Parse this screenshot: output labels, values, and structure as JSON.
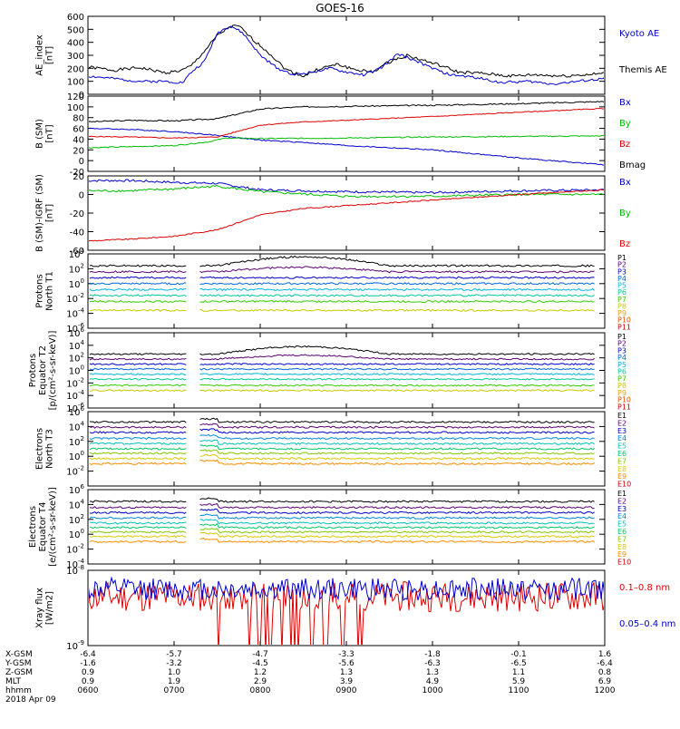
{
  "chart_data": {
    "type": "line",
    "title": "GOES-16",
    "time_range_hours": [
      6,
      12
    ],
    "panels": [
      {
        "id": "ae",
        "ylabel": [
          "AE_index",
          "[nT]"
        ],
        "scale": "linear",
        "ylim": [
          0,
          600
        ],
        "yticks": [
          0,
          100,
          200,
          300,
          400,
          500,
          600
        ],
        "ytick_labels": [
          "0",
          "100",
          "200",
          "300",
          "400",
          "500",
          "600"
        ],
        "legend": [
          {
            "label": "Kyoto AE",
            "color": "#0000cc"
          },
          {
            "label": "Themis AE",
            "color": "#000000"
          }
        ],
        "series": [
          {
            "name": "Themis AE",
            "color": "#000000",
            "seed": 1,
            "noise": 12,
            "points": [
              [
                6.0,
                210
              ],
              [
                6.3,
                185
              ],
              [
                6.6,
                205
              ],
              [
                6.9,
                165
              ],
              [
                7.1,
                185
              ],
              [
                7.2,
                220
              ],
              [
                7.35,
                330
              ],
              [
                7.5,
                450
              ],
              [
                7.65,
                520
              ],
              [
                7.75,
                525
              ],
              [
                7.9,
                430
              ],
              [
                8.1,
                320
              ],
              [
                8.3,
                190
              ],
              [
                8.5,
                140
              ],
              [
                8.7,
                200
              ],
              [
                8.9,
                230
              ],
              [
                9.1,
                190
              ],
              [
                9.3,
                170
              ],
              [
                9.5,
                250
              ],
              [
                9.7,
                300
              ],
              [
                9.9,
                260
              ],
              [
                10.1,
                220
              ],
              [
                10.3,
                170
              ],
              [
                10.6,
                160
              ],
              [
                10.9,
                140
              ],
              [
                11.2,
                150
              ],
              [
                11.5,
                140
              ],
              [
                12.0,
                160
              ]
            ]
          },
          {
            "name": "Kyoto AE",
            "color": "#0000cc",
            "seed": 2,
            "noise": 10,
            "points": [
              [
                6.0,
                140
              ],
              [
                6.3,
                120
              ],
              [
                6.6,
                100
              ],
              [
                6.9,
                100
              ],
              [
                7.1,
                90
              ],
              [
                7.2,
                170
              ],
              [
                7.35,
                250
              ],
              [
                7.5,
                470
              ],
              [
                7.65,
                530
              ],
              [
                7.8,
                470
              ],
              [
                8.0,
                300
              ],
              [
                8.2,
                200
              ],
              [
                8.4,
                150
              ],
              [
                8.6,
                170
              ],
              [
                8.8,
                200
              ],
              [
                9.0,
                170
              ],
              [
                9.2,
                150
              ],
              [
                9.4,
                200
              ],
              [
                9.6,
                310
              ],
              [
                9.8,
                260
              ],
              [
                10.0,
                200
              ],
              [
                10.2,
                150
              ],
              [
                10.5,
                130
              ],
              [
                10.8,
                90
              ],
              [
                11.1,
                100
              ],
              [
                11.4,
                80
              ],
              [
                12.0,
                120
              ]
            ]
          }
        ]
      },
      {
        "id": "bsm",
        "ylabel": [
          "B (SM)",
          "[nT]"
        ],
        "scale": "linear",
        "ylim": [
          -20,
          120
        ],
        "yticks": [
          -20,
          0,
          20,
          40,
          60,
          80,
          100,
          120
        ],
        "ytick_labels": [
          "-20",
          "0",
          "20",
          "40",
          "60",
          "80",
          "100",
          "120"
        ],
        "legend": [
          {
            "label": "Bx",
            "color": "#0000cc"
          },
          {
            "label": "By",
            "color": "#00bb00"
          },
          {
            "label": "Bz",
            "color": "#dd0000"
          },
          {
            "label": "Bmag",
            "color": "#000000"
          }
        ],
        "series": [
          {
            "name": "Bmag",
            "color": "#000000",
            "seed": 3,
            "noise": 1.2,
            "points": [
              [
                6.0,
                72
              ],
              [
                6.5,
                75
              ],
              [
                7.0,
                74
              ],
              [
                7.5,
                78
              ],
              [
                8.0,
                96
              ],
              [
                8.5,
                100
              ],
              [
                9.0,
                101
              ],
              [
                10.0,
                103
              ],
              [
                11.0,
                106
              ],
              [
                12.0,
                110
              ]
            ]
          },
          {
            "name": "Bx",
            "color": "#0000cc",
            "seed": 4,
            "noise": 1.0,
            "points": [
              [
                6.0,
                60
              ],
              [
                6.5,
                58
              ],
              [
                7.0,
                54
              ],
              [
                7.5,
                47
              ],
              [
                8.0,
                38
              ],
              [
                8.5,
                34
              ],
              [
                9.0,
                28
              ],
              [
                10.0,
                20
              ],
              [
                11.0,
                5
              ],
              [
                12.0,
                -8
              ]
            ]
          },
          {
            "name": "Bz",
            "color": "#dd0000",
            "seed": 5,
            "noise": 0.8,
            "points": [
              [
                6.0,
                45
              ],
              [
                6.5,
                44
              ],
              [
                7.0,
                42
              ],
              [
                7.5,
                44
              ],
              [
                8.0,
                66
              ],
              [
                8.5,
                72
              ],
              [
                9.0,
                75
              ],
              [
                10.0,
                82
              ],
              [
                11.0,
                90
              ],
              [
                12.0,
                97
              ]
            ]
          },
          {
            "name": "By",
            "color": "#00bb00",
            "seed": 6,
            "noise": 1.0,
            "points": [
              [
                6.0,
                24
              ],
              [
                6.5,
                26
              ],
              [
                7.0,
                28
              ],
              [
                7.4,
                35
              ],
              [
                7.6,
                42
              ],
              [
                8.0,
                41
              ],
              [
                9.0,
                42
              ],
              [
                10.0,
                44
              ],
              [
                11.0,
                45
              ],
              [
                12.0,
                46
              ]
            ]
          }
        ]
      },
      {
        "id": "bdiff",
        "ylabel": [
          "B (SM)-IGRF (SM)",
          "[nT]"
        ],
        "scale": "linear",
        "ylim": [
          -60,
          20
        ],
        "yticks": [
          -60,
          -40,
          -20,
          0,
          20
        ],
        "ytick_labels": [
          "-60",
          "-40",
          "-20",
          "0",
          "20"
        ],
        "legend": [
          {
            "label": "Bx",
            "color": "#0000cc"
          },
          {
            "label": "By",
            "color": "#00bb00"
          },
          {
            "label": "Bz",
            "color": "#dd0000"
          }
        ],
        "series": [
          {
            "name": "Bx",
            "color": "#0000cc",
            "seed": 7,
            "noise": 1.2,
            "points": [
              [
                6.0,
                15
              ],
              [
                6.5,
                15
              ],
              [
                7.0,
                13
              ],
              [
                7.5,
                12
              ],
              [
                8.0,
                5
              ],
              [
                9.0,
                3
              ],
              [
                10.0,
                2
              ],
              [
                11.0,
                4
              ],
              [
                12.0,
                5
              ]
            ]
          },
          {
            "name": "By",
            "color": "#00bb00",
            "seed": 8,
            "noise": 1.2,
            "points": [
              [
                6.0,
                4
              ],
              [
                6.5,
                4
              ],
              [
                7.0,
                6
              ],
              [
                7.5,
                9
              ],
              [
                8.0,
                3
              ],
              [
                9.0,
                -2
              ],
              [
                10.0,
                -2
              ],
              [
                11.0,
                0
              ],
              [
                12.0,
                0
              ]
            ]
          },
          {
            "name": "Bz",
            "color": "#dd0000",
            "seed": 9,
            "noise": 0.6,
            "points": [
              [
                6.0,
                -50
              ],
              [
                6.5,
                -48
              ],
              [
                7.0,
                -45
              ],
              [
                7.5,
                -38
              ],
              [
                8.0,
                -22
              ],
              [
                8.5,
                -15
              ],
              [
                9.0,
                -12
              ],
              [
                10.0,
                -6
              ],
              [
                11.0,
                0
              ],
              [
                12.0,
                5
              ]
            ]
          }
        ]
      },
      {
        "id": "pT1",
        "ylabel": [
          "Protons",
          "North T1"
        ],
        "scale": "log",
        "ylim": [
          -6,
          4
        ],
        "yticks": [
          -6,
          -4,
          -2,
          0,
          2,
          4
        ],
        "ytick_labels": [
          "10^-6",
          "10^-4",
          "10^-2",
          "10^0",
          "10^2",
          "10^4"
        ],
        "channel_labels": [
          "P1",
          "P2",
          "P3",
          "P4",
          "P5",
          "P6",
          "P7",
          "P8",
          "P9",
          "P10",
          "P11"
        ],
        "channel_colors": [
          "#000000",
          "#5a0072",
          "#0000cc",
          "#0066dd",
          "#00b4e0",
          "#00c89a",
          "#33cc00",
          "#c8c800",
          "#ffa000",
          "#e05000",
          "#c80000"
        ],
        "channel_levels": [
          2.4,
          1.6,
          0.8,
          0.0,
          -0.8,
          -1.6,
          -2.4,
          -3.6,
          null,
          null,
          null
        ],
        "gap_hours": [
          7.15,
          7.3
        ],
        "end_hour": 11.88
      },
      {
        "id": "pT2",
        "ylabel": [
          "Protons",
          "Equator T2",
          "[p/(cm²-s-sr-keV)]"
        ],
        "scale": "log",
        "ylim": [
          -6,
          6
        ],
        "yticks": [
          -6,
          -4,
          -2,
          0,
          2,
          4,
          6
        ],
        "ytick_labels": [
          "10^-6",
          "10^-4",
          "10^-2",
          "10^0",
          "10^2",
          "10^4",
          "10^6"
        ],
        "channel_labels": [
          "P1",
          "P2",
          "P3",
          "P4",
          "P5",
          "P6",
          "P7",
          "P8",
          "P9",
          "P10",
          "P11"
        ],
        "channel_colors": [
          "#000000",
          "#5a0072",
          "#0000cc",
          "#0066dd",
          "#00b4e0",
          "#00c89a",
          "#33cc00",
          "#c8c800",
          "#ffa000",
          "#e05000",
          "#c80000"
        ],
        "channel_levels": [
          2.6,
          1.8,
          1.0,
          0.2,
          -0.6,
          -1.4,
          -2.4,
          -3.2,
          null,
          null,
          null
        ],
        "gap_hours": [
          7.15,
          7.3
        ],
        "end_hour": 11.88
      },
      {
        "id": "eT3",
        "ylabel": [
          "Electrons",
          "North T3"
        ],
        "scale": "log",
        "ylim": [
          -4,
          6
        ],
        "yticks": [
          -2,
          0,
          2,
          4,
          6
        ],
        "ytick_labels": [
          "10^-2",
          "10^0",
          "10^2",
          "10^4",
          "10^6"
        ],
        "channel_labels": [
          "E1",
          "E2",
          "E3",
          "E4",
          "E5",
          "E6",
          "E7",
          "E8",
          "E9",
          "E10"
        ],
        "channel_colors": [
          "#000000",
          "#5a0072",
          "#0000cc",
          "#0088dd",
          "#00c0c0",
          "#00c864",
          "#80c800",
          "#d8c800",
          "#ff8c00",
          "#c80000"
        ],
        "channel_levels": [
          4.6,
          3.9,
          3.2,
          2.4,
          1.7,
          1.0,
          0.4,
          -0.3,
          -1.0,
          null
        ],
        "gap_hours": [
          7.15,
          7.3
        ],
        "end_hour": 11.88
      },
      {
        "id": "eT4",
        "ylabel": [
          "Electrons",
          "Equator T4",
          "[e/(cm²-s-sr-keV)]"
        ],
        "scale": "log",
        "ylim": [
          -4,
          6
        ],
        "yticks": [
          -4,
          -2,
          0,
          2,
          4,
          6
        ],
        "ytick_labels": [
          "10^-4",
          "10^-2",
          "10^0",
          "10^2",
          "10^4",
          "10^6"
        ],
        "channel_labels": [
          "E1",
          "E2",
          "E3",
          "E4",
          "E5",
          "E6",
          "E7",
          "E8",
          "E9",
          "E10"
        ],
        "channel_colors": [
          "#000000",
          "#5a0072",
          "#0000cc",
          "#0088dd",
          "#00c0c0",
          "#00c864",
          "#80c800",
          "#d8c800",
          "#ff8c00",
          "#c80000"
        ],
        "channel_levels": [
          4.4,
          3.6,
          2.9,
          2.2,
          1.5,
          0.9,
          0.3,
          -0.3,
          -1.0,
          null
        ],
        "gap_hours": [
          7.15,
          7.3
        ],
        "end_hour": 11.88
      },
      {
        "id": "xray",
        "ylabel": [
          "Xray flux",
          "[W/m2]"
        ],
        "scale": "log",
        "ylim": [
          -9,
          -8
        ],
        "yticks": [
          -9,
          -8
        ],
        "ytick_labels": [
          "10^-9",
          "10^-8"
        ],
        "legend": [
          {
            "label": "0.1–0.8 nm",
            "color": "#dd0000"
          },
          {
            "label": "0.05–0.4 nm",
            "color": "#0000cc"
          }
        ],
        "series": [
          {
            "name": "0.1-0.8 nm",
            "color": "#dd0000",
            "base": -8.35,
            "noise": 0.2,
            "seed": 11
          },
          {
            "name": "0.05-0.4 nm",
            "color": "#0000cc",
            "base": -8.25,
            "noise": 0.15,
            "seed": 12
          }
        ]
      }
    ],
    "x_axis": {
      "row_labels": [
        "X-GSM",
        "Y-GSM",
        "Z-GSM",
        "MLT",
        "hhmm",
        "2018 Apr 09"
      ],
      "columns": [
        [
          "-6.4",
          "-1.6",
          "0.9",
          "0.9",
          "0600"
        ],
        [
          "-5.7",
          "-3.2",
          "1.0",
          "1.9",
          "0700"
        ],
        [
          "-4.7",
          "-4.5",
          "1.2",
          "2.9",
          "0800"
        ],
        [
          "-3.3",
          "-5.6",
          "1.3",
          "3.9",
          "0900"
        ],
        [
          "-1.8",
          "-6.3",
          "1.3",
          "4.9",
          "1000"
        ],
        [
          "-0.1",
          "-6.5",
          "1.1",
          "5.9",
          "1100"
        ],
        [
          "1.6",
          "-6.4",
          "0.8",
          "6.9",
          "1200"
        ]
      ]
    }
  }
}
